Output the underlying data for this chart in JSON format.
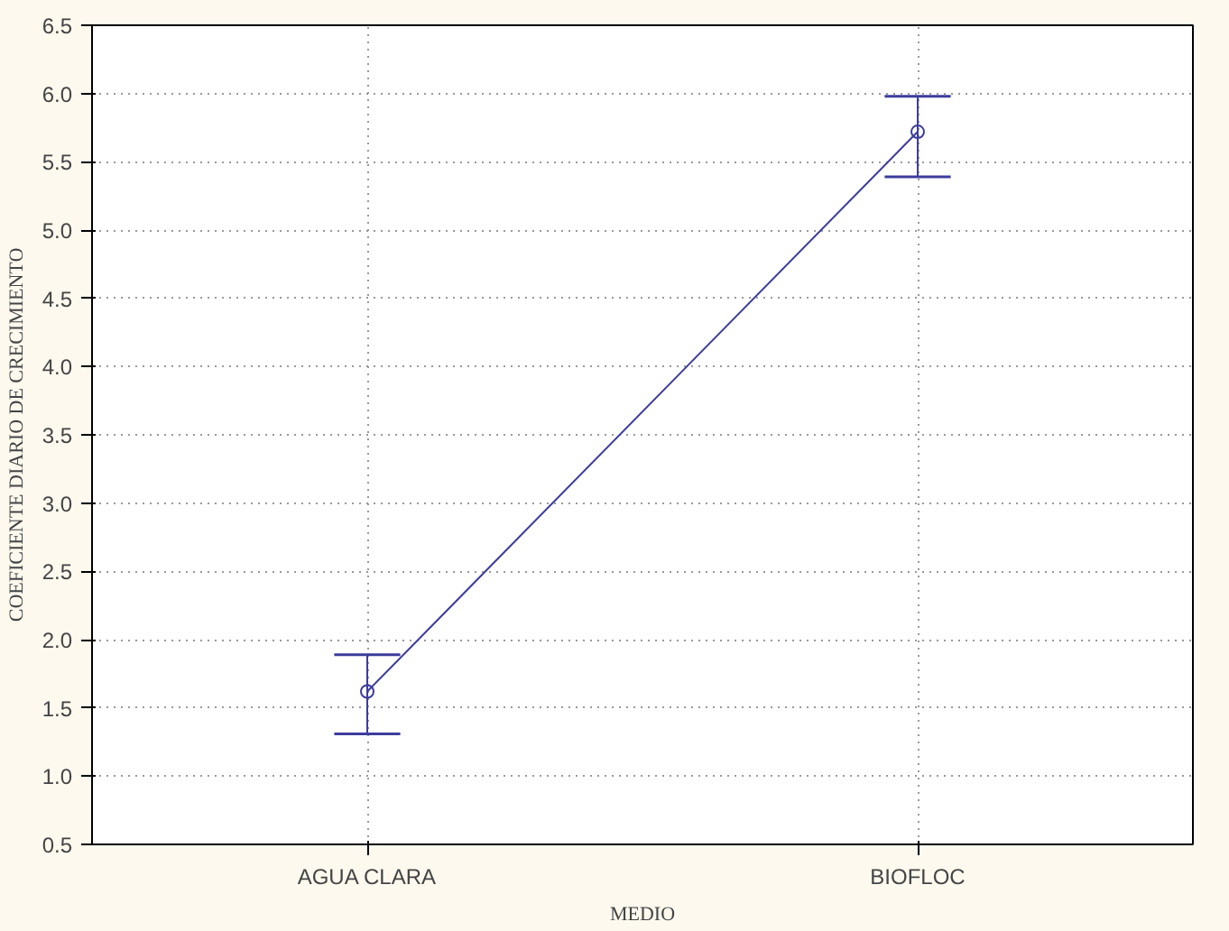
{
  "chart_data": {
    "type": "line",
    "xlabel": "MEDIO",
    "ylabel": "COEFICIENTE DIARIO DE CRECIMIENTO",
    "categories": [
      "AGUA CLARA",
      "BIOFLOC"
    ],
    "series": [
      {
        "color": "#3c3c9c",
        "values": [
          1.62,
          5.72
        ],
        "errors": [
          [
            1.31,
            1.89
          ],
          [
            5.39,
            5.98
          ]
        ]
      }
    ],
    "ylim": [
      0.5,
      6.5
    ],
    "yticks": [
      0.5,
      {
        "value": 1,
        "label": "1.0"
      },
      1.5,
      {
        "value": 2,
        "label": "2.0"
      },
      2.5,
      {
        "value": 3,
        "label": "3.0"
      },
      3.5,
      {
        "value": 4,
        "label": "4.0"
      },
      4.5,
      {
        "value": 5,
        "label": "5.0"
      },
      5.5,
      {
        "value": 6,
        "label": "6.0"
      },
      6.5
    ],
    "grid": true,
    "marker": "circle",
    "line_style": "solid"
  }
}
